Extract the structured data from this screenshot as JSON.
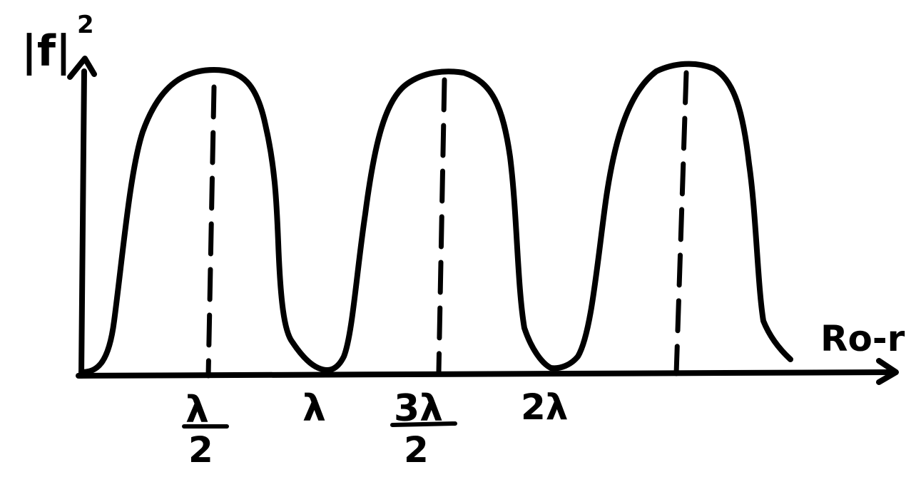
{
  "labels": {
    "y_axis": "|f|",
    "y_axis_exponent": "2",
    "x_axis": "Ro-r",
    "tick_half_num": "λ",
    "tick_half_den": "2",
    "tick_one": "λ",
    "tick_three_half_num": "3λ",
    "tick_three_half_den": "2",
    "tick_two": "2λ"
  },
  "colors": {
    "ink": "#000000",
    "background": "#ffffff",
    "dash": "#000000"
  }
}
